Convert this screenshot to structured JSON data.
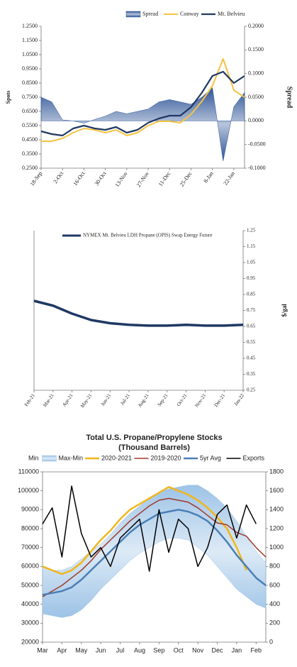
{
  "chart_data": [
    {
      "type": "line",
      "ylabel": "Spots",
      "y2label": "Spread",
      "legend": "top",
      "categories": [
        "18-Sep",
        null,
        "2-Oct",
        null,
        "16-Oct",
        null,
        "30-Oct",
        null,
        "13-Nov",
        null,
        "27-Nov",
        null,
        "11-Dec",
        null,
        "25-Dec",
        null,
        "8-Jan",
        null,
        "22-Jan",
        null
      ],
      "ylim": [
        0.25,
        1.25
      ],
      "yticks": [
        {
          "value": 0.25,
          "label": "0.2500"
        },
        {
          "value": 0.35,
          "label": "0.3500"
        },
        {
          "value": 0.45,
          "label": "0.4500"
        },
        {
          "value": 0.55,
          "label": "0.5500"
        },
        {
          "value": 0.65,
          "label": "0.6500"
        },
        {
          "value": 0.75,
          "label": "0.7500"
        },
        {
          "value": 0.85,
          "label": "0.8500"
        },
        {
          "value": 0.95,
          "label": "0.9500"
        },
        {
          "value": 1.05,
          "label": "1.0500"
        },
        {
          "value": 1.15,
          "label": "1.1500"
        },
        {
          "value": 1.25,
          "label": "1.2500"
        }
      ],
      "y2lim": [
        -0.1,
        0.2
      ],
      "y2ticks": [
        {
          "value": -0.1,
          "label": "-0.1000"
        },
        {
          "value": -0.05,
          "label": "-0.0500"
        },
        {
          "value": 0,
          "label": "0.0000"
        },
        {
          "value": 0.05,
          "label": "0.0500"
        },
        {
          "value": 0.1,
          "label": "0.1000"
        },
        {
          "value": 0.15,
          "label": "0.1500"
        },
        {
          "value": 0.2,
          "label": "0.2000"
        }
      ],
      "series": [
        {
          "name": "Spread",
          "type": "area",
          "axis": "y2",
          "color": "#2f5597",
          "values": [
            0.05,
            0.04,
            0.002,
            0.0,
            -0.005,
            0.003,
            0.01,
            0.02,
            0.015,
            0.02,
            0.025,
            0.04,
            0.045,
            0.04,
            0.035,
            0.05,
            0.07,
            -0.085,
            0.03,
            0.06
          ]
        },
        {
          "name": "Conway",
          "type": "line",
          "color": "#f5c242",
          "values": [
            0.44,
            0.44,
            0.46,
            0.5,
            0.53,
            0.52,
            0.5,
            0.52,
            0.48,
            0.5,
            0.55,
            0.58,
            0.58,
            0.57,
            0.63,
            0.72,
            0.83,
            1.02,
            0.8,
            0.75
          ]
        },
        {
          "name": "Mt. Belvieu",
          "type": "line",
          "color": "#1f3864",
          "values": [
            0.51,
            0.49,
            0.48,
            0.53,
            0.55,
            0.53,
            0.52,
            0.54,
            0.5,
            0.52,
            0.57,
            0.6,
            0.62,
            0.62,
            0.68,
            0.78,
            0.9,
            0.93,
            0.85,
            0.9
          ]
        }
      ]
    },
    {
      "type": "line",
      "y2label": "$/gal",
      "legend": "upper left",
      "categories": [
        "Feb-21",
        "Mar-21",
        "Apr-21",
        "May-21",
        "Jun-21",
        "Jul-21",
        "Aug-21",
        "Sep-21",
        "Oct-21",
        "Nov-21",
        "Dec-21",
        "Jan-22"
      ],
      "y2lim": [
        0.25,
        1.25
      ],
      "y2ticks": [
        0.25,
        0.35,
        0.45,
        0.55,
        0.65,
        0.75,
        0.85,
        0.95,
        1.05,
        1.15,
        1.25
      ],
      "series": [
        {
          "name": "NYMEX Mt. Belvieu LDH Propane (OPIS) Swap Energy Future",
          "type": "line",
          "axis": "y2",
          "color": "#1f3864",
          "values": [
            0.81,
            0.78,
            0.73,
            0.69,
            0.67,
            0.66,
            0.655,
            0.655,
            0.66,
            0.655,
            0.655,
            0.66
          ]
        }
      ]
    },
    {
      "type": "line",
      "title": "Total U.S. Propane/Propylene Stocks",
      "subtitle": "(Thousand Barrels)",
      "legend": "top",
      "stacked": true,
      "categories": [
        "Mar",
        null,
        "Apr",
        null,
        "May",
        null,
        "Jun",
        null,
        "Jul",
        null,
        "Aug",
        null,
        "Sep",
        null,
        "Oct",
        null,
        "Nov",
        null,
        "Dec",
        null,
        "Jan",
        null,
        "Feb",
        null
      ],
      "ylim": [
        20000,
        110000
      ],
      "yticks": [
        20000,
        30000,
        40000,
        50000,
        60000,
        70000,
        80000,
        90000,
        100000,
        110000
      ],
      "y2lim": [
        0,
        1800
      ],
      "y2ticks": [
        0,
        200,
        400,
        600,
        800,
        1000,
        1200,
        1400,
        1600,
        1800
      ],
      "series": [
        {
          "name": "Min",
          "type": "area",
          "values": [
            35000,
            34000,
            33000,
            34000,
            37000,
            42000,
            48000,
            53000,
            58000,
            63000,
            67000,
            70000,
            73000,
            75000,
            75000,
            74000,
            70000,
            66000,
            60000,
            54000,
            48000,
            44000,
            40000,
            38000
          ]
        },
        {
          "name": "Max-Min",
          "type": "area",
          "color": "#9dc3e6",
          "values": [
            25000,
            24000,
            25000,
            26000,
            27000,
            26000,
            24000,
            24000,
            25000,
            25000,
            25000,
            26000,
            26000,
            26000,
            27000,
            29000,
            33000,
            34000,
            36000,
            37000,
            36000,
            32000,
            28000,
            24000
          ]
        },
        {
          "name": "2020-2021",
          "type": "line",
          "color": "#f2b61b",
          "values": [
            60000,
            58000,
            56000,
            58000,
            62000,
            68000,
            74000,
            79000,
            85000,
            90000,
            93000,
            96000,
            99000,
            102000,
            100000,
            98000,
            95000,
            91000,
            86000,
            80000,
            70000,
            58000,
            null,
            null
          ]
        },
        {
          "name": "2019-2020",
          "type": "line",
          "color": "#a0392b",
          "values": [
            44000,
            47000,
            50000,
            54000,
            58000,
            63000,
            69000,
            74000,
            79000,
            84000,
            88000,
            92000,
            95000,
            96000,
            95000,
            94000,
            91000,
            87000,
            83000,
            82000,
            78000,
            76000,
            70000,
            65000
          ]
        },
        {
          "name": "5yr Avg",
          "type": "line",
          "color": "#4a7fb5",
          "values": [
            45000,
            46000,
            47000,
            49000,
            53000,
            58000,
            63000,
            68000,
            73000,
            78000,
            82000,
            85000,
            88000,
            89000,
            90000,
            89000,
            87000,
            84000,
            79000,
            73000,
            66000,
            60000,
            54000,
            50000
          ]
        },
        {
          "name": "Exports",
          "type": "line",
          "axis": "y2",
          "color": "#000000",
          "values": [
            1250,
            1420,
            900,
            1650,
            1150,
            900,
            1000,
            800,
            1100,
            1200,
            1300,
            750,
            1400,
            950,
            1300,
            1200,
            800,
            1000,
            1350,
            1450,
            1100,
            1450,
            1250,
            null
          ]
        }
      ]
    }
  ]
}
